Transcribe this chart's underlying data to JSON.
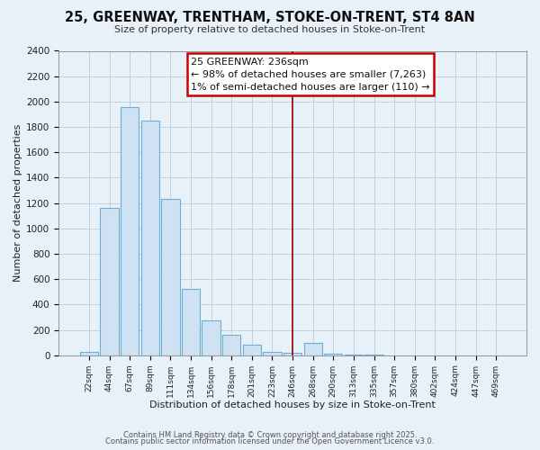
{
  "title": "25, GREENWAY, TRENTHAM, STOKE-ON-TRENT, ST4 8AN",
  "subtitle": "Size of property relative to detached houses in Stoke-on-Trent",
  "xlabel": "Distribution of detached houses by size in Stoke-on-Trent",
  "ylabel": "Number of detached properties",
  "bar_labels": [
    "22sqm",
    "44sqm",
    "67sqm",
    "89sqm",
    "111sqm",
    "134sqm",
    "156sqm",
    "178sqm",
    "201sqm",
    "223sqm",
    "246sqm",
    "268sqm",
    "290sqm",
    "313sqm",
    "335sqm",
    "357sqm",
    "380sqm",
    "402sqm",
    "424sqm",
    "447sqm",
    "469sqm"
  ],
  "bar_values": [
    25,
    1160,
    1960,
    1850,
    1230,
    520,
    275,
    160,
    85,
    30,
    20,
    100,
    10,
    5,
    2,
    1,
    0,
    0,
    0,
    0,
    0
  ],
  "bar_color": "#cfe2f3",
  "bar_edge_color": "#6baed6",
  "bg_color": "#e8f0f8",
  "grid_color": "#b8cce0",
  "vline_x": 10.5,
  "vline_color": "#990000",
  "annotation_title": "25 GREENWAY: 236sqm",
  "annotation_line1": "← 98% of detached houses are smaller (7,263)",
  "annotation_line2": "1% of semi-detached houses are larger (110) →",
  "annotation_box_color": "#ffffff",
  "annotation_border_color": "#cc0000",
  "footer1": "Contains HM Land Registry data © Crown copyright and database right 2025.",
  "footer2": "Contains public sector information licensed under the Open Government Licence v3.0.",
  "ylim": [
    0,
    2400
  ],
  "yticks": [
    0,
    200,
    400,
    600,
    800,
    1000,
    1200,
    1400,
    1600,
    1800,
    2000,
    2200,
    2400
  ]
}
